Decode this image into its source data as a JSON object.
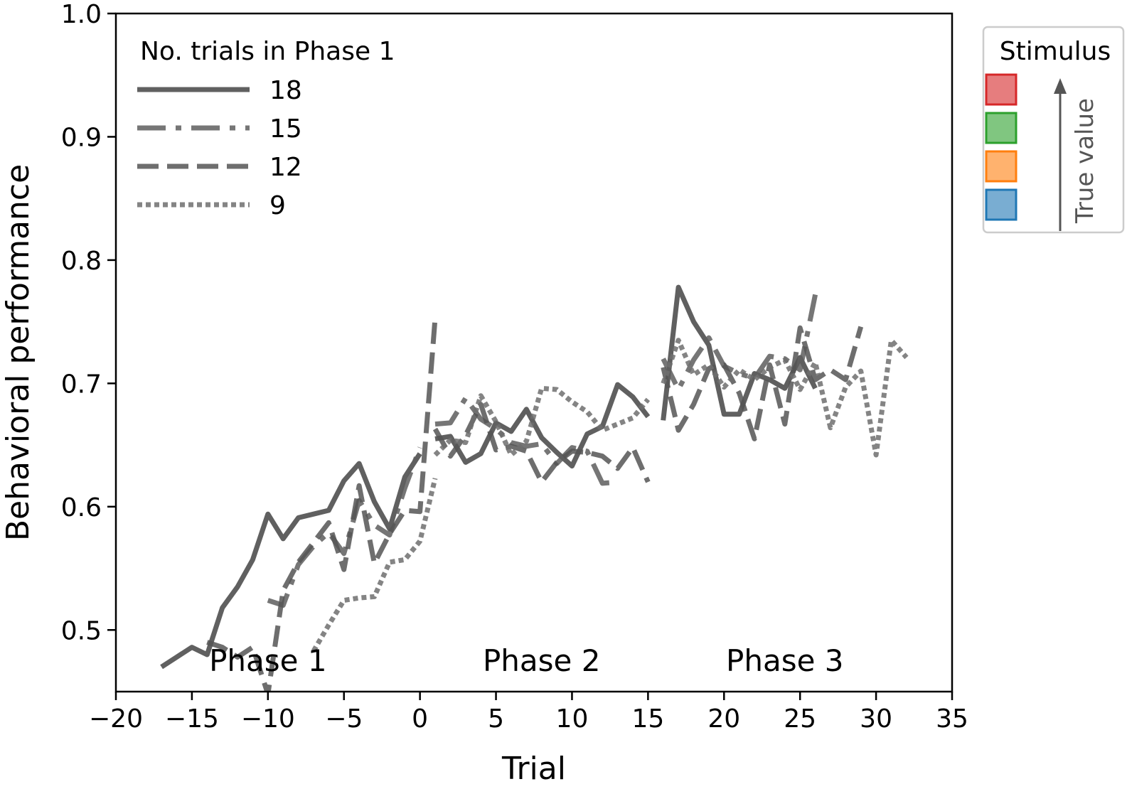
{
  "chart_data": {
    "type": "line",
    "title": "",
    "xlabel": "Trial",
    "ylabel": "Behavioral performance",
    "xlim": [
      -20,
      35
    ],
    "ylim": [
      0.45,
      1.0
    ],
    "xticks": [
      -20,
      -15,
      -10,
      -5,
      0,
      5,
      10,
      15,
      20,
      25,
      30,
      35
    ],
    "yticks": [
      0.5,
      0.6,
      0.7,
      0.8,
      0.9,
      1.0
    ],
    "xtick_labels": [
      "−20",
      "−15",
      "−10",
      "−5",
      "0",
      "5",
      "10",
      "15",
      "20",
      "25",
      "30",
      "35"
    ],
    "ytick_labels": [
      "0.5",
      "0.6",
      "0.7",
      "0.8",
      "0.9",
      "1.0"
    ],
    "grid": false,
    "phase_labels": [
      {
        "text": "Phase 1",
        "x": -10
      },
      {
        "text": "Phase 2",
        "x": 8
      },
      {
        "text": "Phase 3",
        "x": 24
      }
    ],
    "legend": {
      "title": "No. trials in Phase 1",
      "placement": "top-left",
      "entries": [
        "18",
        "15",
        "12",
        "9"
      ]
    },
    "stimulus_legend": {
      "title": "Stimulus",
      "placement": "right",
      "arrow_label": "True value",
      "colors": [
        "#d62728",
        "#2ca02c",
        "#ff7f0e",
        "#1f77b4"
      ]
    },
    "series": [
      {
        "name": "18",
        "dash": "solid",
        "segments": [
          {
            "x": [
              -17,
              -16,
              -15,
              -14,
              -13,
              -12,
              -11,
              -10,
              -9,
              -8,
              -7,
              -6,
              -5,
              -4,
              -3,
              -2,
              -1,
              0
            ],
            "y": [
              0.47,
              0.478,
              0.486,
              0.48,
              0.518,
              0.535,
              0.557,
              0.594,
              0.574,
              0.591,
              0.594,
              0.597,
              0.621,
              0.635,
              0.604,
              0.582,
              0.624,
              0.643
            ]
          },
          {
            "x": [
              1,
              2,
              3,
              4,
              5,
              6,
              7,
              8,
              9,
              10,
              11,
              12,
              13,
              14,
              15
            ],
            "y": [
              0.655,
              0.657,
              0.636,
              0.643,
              0.668,
              0.661,
              0.679,
              0.656,
              0.644,
              0.633,
              0.659,
              0.665,
              0.699,
              0.689,
              0.673
            ]
          },
          {
            "x": [
              16,
              17,
              18,
              19,
              20,
              21,
              22,
              23,
              24,
              25,
              26
            ],
            "y": [
              0.67,
              0.778,
              0.75,
              0.731,
              0.675,
              0.675,
              0.708,
              0.703,
              0.696,
              0.721,
              0.696
            ]
          }
        ]
      },
      {
        "name": "15",
        "dash": "dashdot",
        "segments": [
          {
            "x": [
              -10,
              -9,
              -8,
              -7,
              -6,
              -5,
              -4,
              -3,
              -2,
              -1,
              0
            ],
            "y": [
              0.524,
              0.52,
              0.553,
              0.568,
              0.579,
              0.562,
              0.605,
              0.585,
              0.577,
              0.615,
              0.648
            ]
          },
          {
            "x": [
              1,
              2,
              3,
              4,
              5,
              6,
              7,
              8,
              9,
              10,
              11,
              12,
              13
            ],
            "y": [
              0.667,
              0.668,
              0.688,
              0.671,
              0.663,
              0.652,
              0.649,
              0.651,
              0.635,
              0.648,
              0.645,
              0.619,
              0.62
            ]
          },
          {
            "x": [
              16,
              17,
              18,
              19,
              20,
              21,
              22,
              23,
              24,
              25,
              26
            ],
            "y": [
              0.72,
              0.695,
              0.719,
              0.737,
              0.714,
              0.708,
              0.704,
              0.722,
              0.72,
              0.711,
              0.772
            ]
          }
        ]
      },
      {
        "name": "12",
        "dash": "dashed",
        "segments": [
          {
            "x": [
              -14,
              -13,
              -12,
              -11,
              -10,
              -9,
              -8,
              -7,
              -6,
              -5,
              -4,
              -3,
              -2,
              -1,
              0,
              1
            ],
            "y": [
              0.49,
              0.486,
              0.478,
              0.486,
              0.448,
              0.532,
              0.555,
              0.571,
              0.587,
              0.549,
              0.617,
              0.554,
              0.578,
              0.597,
              0.596,
              0.753
            ]
          },
          {
            "x": [
              1,
              2,
              3,
              4,
              5,
              6,
              7,
              8,
              9,
              10,
              11,
              12,
              13,
              14,
              15
            ],
            "y": [
              0.663,
              0.641,
              0.658,
              0.683,
              0.646,
              0.649,
              0.645,
              0.62,
              0.636,
              0.645,
              0.644,
              0.641,
              0.631,
              0.648,
              0.62
            ]
          },
          {
            "x": [
              16,
              17,
              18,
              19,
              20,
              21,
              22,
              23,
              24,
              25,
              26,
              27,
              28,
              29
            ],
            "y": [
              0.713,
              0.662,
              0.683,
              0.712,
              0.715,
              0.692,
              0.655,
              0.715,
              0.667,
              0.745,
              0.703,
              0.711,
              0.703,
              0.746
            ]
          }
        ]
      },
      {
        "name": "9",
        "dash": "dotted",
        "segments": [
          {
            "x": [
              -7,
              -6,
              -5,
              -4,
              -3,
              -2,
              -1,
              0,
              1
            ],
            "y": [
              0.483,
              0.504,
              0.524,
              0.526,
              0.527,
              0.555,
              0.557,
              0.572,
              0.623
            ]
          },
          {
            "x": [
              1,
              2,
              3,
              4,
              5,
              6,
              7,
              8,
              9,
              10,
              11,
              12,
              13,
              14,
              15
            ],
            "y": [
              0.642,
              0.654,
              0.652,
              0.69,
              0.669,
              0.642,
              0.653,
              0.696,
              0.695,
              0.685,
              0.677,
              0.662,
              0.667,
              0.672,
              0.687
            ]
          },
          {
            "x": [
              16,
              17,
              18,
              19,
              20,
              21,
              22,
              23,
              24,
              25,
              26,
              27,
              28,
              29,
              30,
              31,
              32
            ],
            "y": [
              0.7,
              0.735,
              0.707,
              0.715,
              0.697,
              0.711,
              0.703,
              0.713,
              0.719,
              0.695,
              0.717,
              0.664,
              0.697,
              0.71,
              0.642,
              0.735,
              0.721
            ]
          }
        ]
      }
    ]
  }
}
